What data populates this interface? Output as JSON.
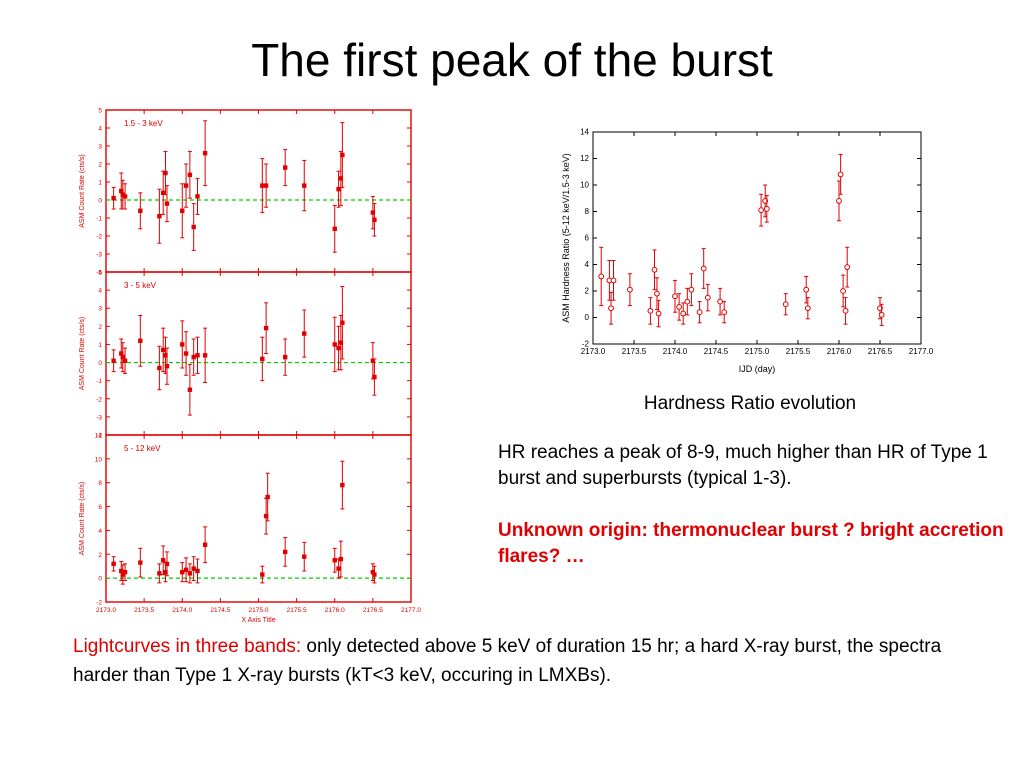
{
  "slide": {
    "title": "The first peak of the burst",
    "hr_caption": "Hardness Ratio evolution",
    "hr_text": "HR reaches a peak of 8-9, much higher than HR of Type 1 burst and superbursts  (typical 1-3).",
    "hr_text_red": "Unknown origin: thermonuclear burst ? bright accretion flares? …",
    "bottom_red": "Lightcurves in three bands:",
    "bottom_text": " only detected above 5 keV of duration 15 hr; a hard X-ray burst, the spectra harder than Type 1 X-ray bursts (kT<3 keV, occuring in LMXBs)."
  },
  "colors": {
    "data": "#e00000",
    "reference_line": "#00cc00",
    "frame": "#e00000"
  },
  "chart_data": [
    {
      "type": "scatter",
      "panel": "1.5 - 3 keV",
      "ylabel": "ASM Count Rate (cts/s)",
      "ylim": [
        -4,
        5
      ],
      "yticks": [
        -4,
        -3,
        -2,
        -1,
        0,
        1,
        2,
        3,
        4,
        5
      ],
      "xlim": [
        2173.0,
        2177.0
      ],
      "reference_y": 0,
      "x": [
        2173.1,
        2173.2,
        2173.22,
        2173.25,
        2173.45,
        2173.7,
        2173.75,
        2173.78,
        2173.8,
        2174.0,
        2174.05,
        2174.1,
        2174.15,
        2174.2,
        2174.3,
        2175.05,
        2175.1,
        2175.35,
        2175.6,
        2176.0,
        2176.05,
        2176.08,
        2176.1,
        2176.5,
        2176.52
      ],
      "y": [
        0.1,
        0.5,
        0.3,
        0.2,
        -0.6,
        -0.9,
        0.4,
        1.5,
        -0.2,
        -0.6,
        0.8,
        1.4,
        -1.5,
        0.2,
        2.6,
        0.8,
        0.8,
        1.8,
        0.8,
        -1.6,
        0.6,
        1.2,
        2.5,
        -0.7,
        -1.1
      ],
      "err": [
        0.6,
        1.0,
        0.8,
        0.7,
        1.0,
        1.5,
        1.2,
        1.2,
        1.0,
        1.5,
        1.2,
        1.3,
        1.3,
        1.0,
        1.8,
        1.5,
        1.2,
        1.0,
        1.4,
        1.3,
        1.0,
        1.5,
        1.8,
        0.9,
        0.9
      ]
    },
    {
      "type": "scatter",
      "panel": "3 - 5 keV",
      "ylabel": "ASM Count Rate (cts/s)",
      "ylim": [
        -4,
        5
      ],
      "yticks": [
        -4,
        -3,
        -2,
        -1,
        0,
        1,
        2,
        3,
        4,
        5
      ],
      "xlim": [
        2173.0,
        2177.0
      ],
      "reference_y": 0,
      "x": [
        2173.1,
        2173.2,
        2173.22,
        2173.25,
        2173.45,
        2173.7,
        2173.75,
        2173.78,
        2173.8,
        2174.0,
        2174.05,
        2174.1,
        2174.15,
        2174.2,
        2174.3,
        2175.05,
        2175.1,
        2175.35,
        2175.6,
        2176.0,
        2176.05,
        2176.08,
        2176.1,
        2176.5,
        2176.52
      ],
      "y": [
        0.1,
        0.5,
        0.3,
        0.1,
        1.2,
        -0.3,
        0.7,
        0.4,
        -0.2,
        1.0,
        0.5,
        -1.5,
        0.3,
        0.4,
        0.4,
        0.2,
        1.9,
        0.3,
        1.6,
        1.0,
        0.8,
        1.1,
        2.2,
        0.1,
        -0.8
      ],
      "err": [
        0.6,
        0.8,
        0.8,
        0.7,
        1.4,
        1.2,
        1.2,
        1.0,
        1.0,
        1.3,
        1.2,
        1.4,
        1.0,
        1.0,
        1.5,
        1.2,
        1.4,
        1.0,
        1.3,
        1.5,
        1.2,
        1.5,
        2.0,
        1.0,
        1.0
      ]
    },
    {
      "type": "scatter",
      "panel": "5 - 12 keV",
      "ylabel": "ASM Count Rate (cts/s)",
      "xlabel": "X Axis Title",
      "ylim": [
        -2,
        12
      ],
      "yticks": [
        -2,
        0,
        2,
        4,
        6,
        8,
        10,
        12
      ],
      "xlim": [
        2173.0,
        2177.0
      ],
      "xticks": [
        2173.0,
        2173.5,
        2174.0,
        2174.5,
        2175.0,
        2175.5,
        2176.0,
        2176.5,
        2177.0
      ],
      "reference_y": 0,
      "x": [
        2173.1,
        2173.2,
        2173.22,
        2173.25,
        2173.45,
        2173.7,
        2173.75,
        2173.78,
        2173.8,
        2174.0,
        2174.05,
        2174.1,
        2174.15,
        2174.2,
        2174.3,
        2175.05,
        2175.1,
        2175.12,
        2175.35,
        2175.6,
        2176.0,
        2176.05,
        2176.08,
        2176.1,
        2176.5,
        2176.52
      ],
      "y": [
        1.2,
        0.6,
        0.3,
        0.5,
        1.3,
        0.4,
        1.5,
        0.5,
        1.2,
        0.5,
        0.7,
        0.4,
        0.8,
        0.6,
        2.8,
        0.3,
        5.2,
        6.8,
        2.2,
        1.8,
        1.5,
        0.8,
        1.6,
        7.8,
        0.5,
        0.3
      ],
      "err": [
        0.6,
        0.8,
        0.8,
        0.7,
        1.2,
        0.8,
        1.2,
        0.8,
        1.0,
        0.8,
        1.0,
        0.8,
        1.0,
        1.0,
        1.5,
        0.7,
        1.5,
        2.0,
        1.2,
        1.2,
        1.0,
        0.8,
        1.5,
        2.0,
        0.7,
        0.7
      ]
    },
    {
      "type": "scatter",
      "ylabel": "ASM Hardness Ratio (5-12 keV/1.5-3 keV)",
      "xlabel": "IJD (day)",
      "ylim": [
        -2,
        14
      ],
      "yticks": [
        -2,
        0,
        2,
        4,
        6,
        8,
        10,
        12,
        14
      ],
      "xlim": [
        2173.0,
        2177.0
      ],
      "xticks": [
        2173.0,
        2173.5,
        2174.0,
        2174.5,
        2175.0,
        2175.5,
        2176.0,
        2176.5,
        2177.0
      ],
      "x": [
        2173.1,
        2173.2,
        2173.22,
        2173.25,
        2173.45,
        2173.7,
        2173.75,
        2173.78,
        2173.8,
        2174.0,
        2174.05,
        2174.1,
        2174.15,
        2174.2,
        2174.3,
        2174.35,
        2174.4,
        2174.55,
        2174.6,
        2175.05,
        2175.1,
        2175.12,
        2175.35,
        2175.6,
        2175.62,
        2176.0,
        2176.02,
        2176.05,
        2176.08,
        2176.1,
        2176.5,
        2176.52
      ],
      "y": [
        3.1,
        2.8,
        0.7,
        2.8,
        2.1,
        0.5,
        3.6,
        1.8,
        0.3,
        1.6,
        0.8,
        0.3,
        1.2,
        2.1,
        0.4,
        3.7,
        1.5,
        1.2,
        0.4,
        8.1,
        8.8,
        8.2,
        1.0,
        2.1,
        0.7,
        8.8,
        10.8,
        2.0,
        0.5,
        3.8,
        0.7,
        0.2
      ],
      "err": [
        2.2,
        1.5,
        1.2,
        1.5,
        1.2,
        1.0,
        1.5,
        1.2,
        1.0,
        1.2,
        1.0,
        0.8,
        1.0,
        1.2,
        0.8,
        1.5,
        1.0,
        1.0,
        0.8,
        1.2,
        1.2,
        1.0,
        0.8,
        1.0,
        0.8,
        1.5,
        1.5,
        1.2,
        1.0,
        1.5,
        0.8,
        0.8
      ]
    }
  ]
}
